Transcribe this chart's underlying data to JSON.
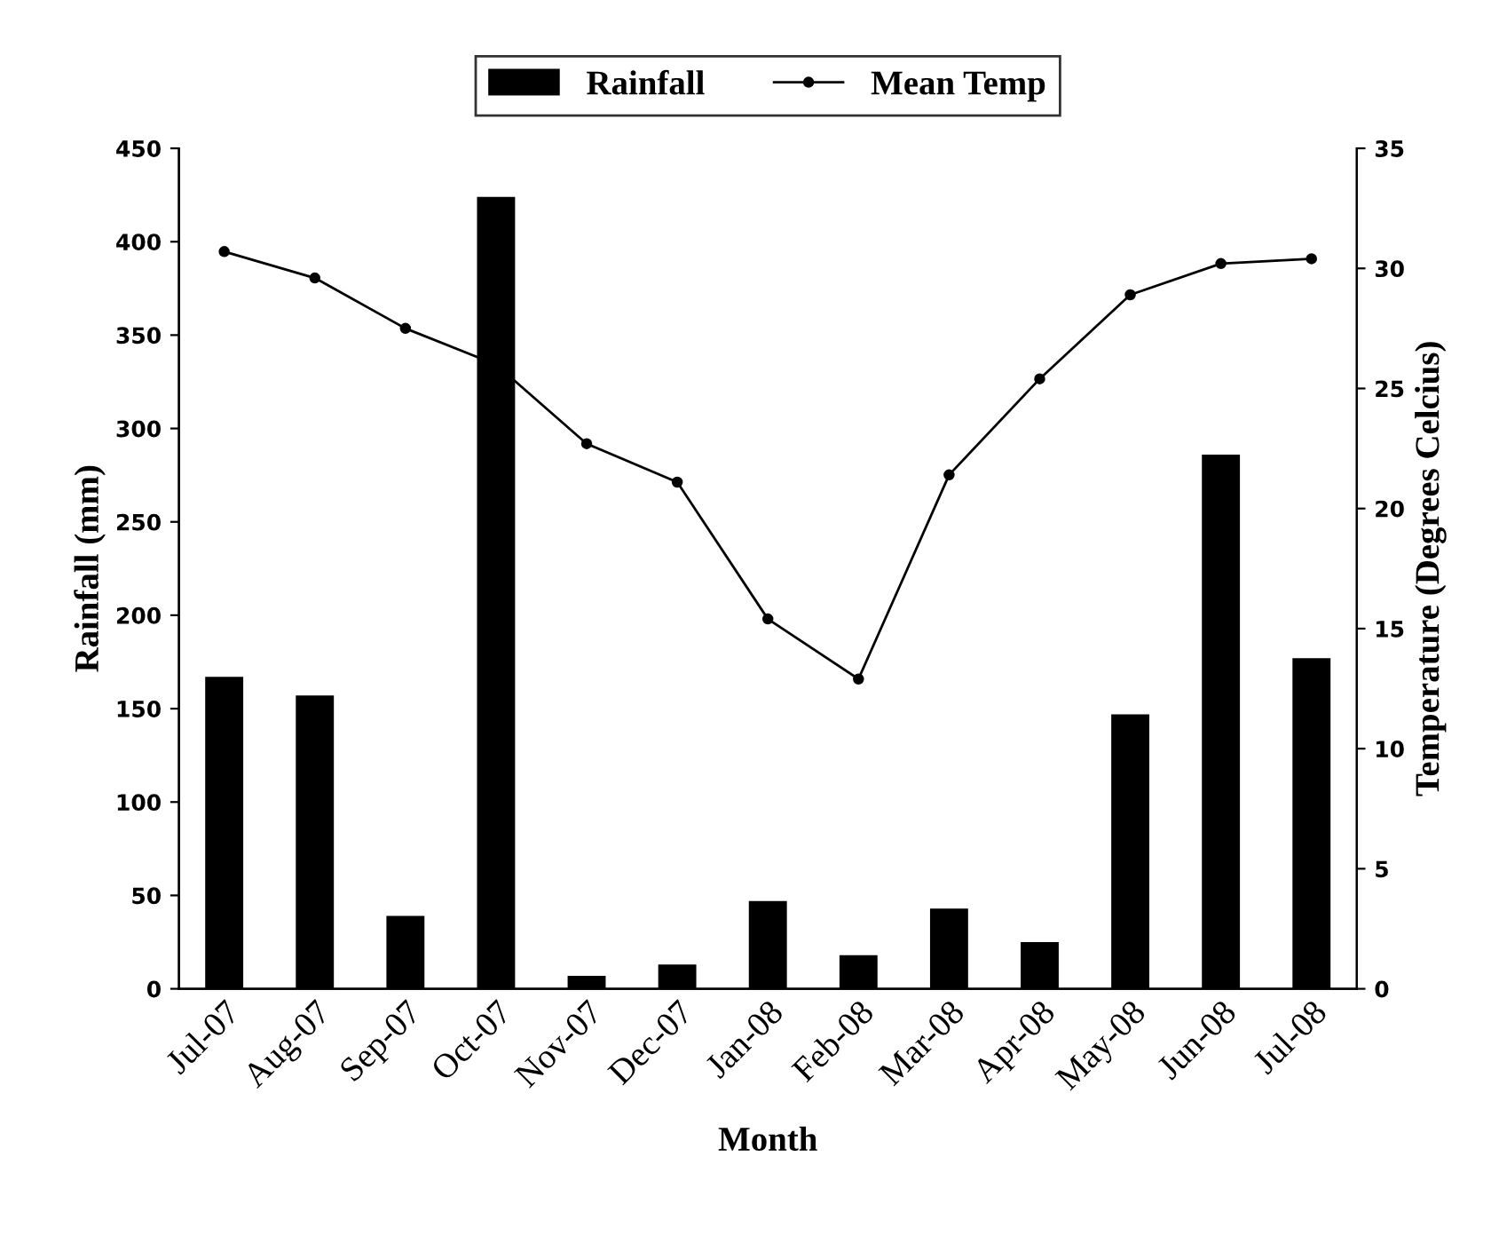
{
  "chart_data": {
    "type": "bar",
    "categories": [
      "Jul-07",
      "Aug-07",
      "Sep-07",
      "Oct-07",
      "Nov-07",
      "Dec-07",
      "Jan-08",
      "Feb-08",
      "Mar-08",
      "Apr-08",
      "May-08",
      "Jun-08",
      "Jul-08"
    ],
    "series": [
      {
        "name": "Rainfall",
        "color": "#000000",
        "values": [
          167,
          157,
          39,
          424,
          7,
          13,
          47,
          18,
          43,
          25,
          147,
          286,
          177
        ]
      },
      {
        "name": "Mean Temp",
        "type": "line",
        "axis": "y2",
        "color": "#000000",
        "marker": "circle",
        "line_style": "solid",
        "values": [
          30.7,
          29.6,
          27.5,
          26.0,
          22.7,
          21.1,
          15.4,
          12.9,
          21.4,
          25.4,
          28.9,
          30.2,
          30.4
        ]
      }
    ],
    "xlabel": "Month",
    "ylabel": "Rainfall (mm)",
    "y2label": "Temperature (Degrees Celcius)",
    "ylim": [
      0,
      450
    ],
    "yticks": [
      0,
      50,
      100,
      150,
      200,
      250,
      300,
      350,
      400,
      450
    ],
    "y2lim": [
      0,
      35
    ],
    "y2ticks": [
      0,
      5,
      10,
      15,
      20,
      25,
      30,
      35
    ],
    "grid": false,
    "legend": "top"
  }
}
